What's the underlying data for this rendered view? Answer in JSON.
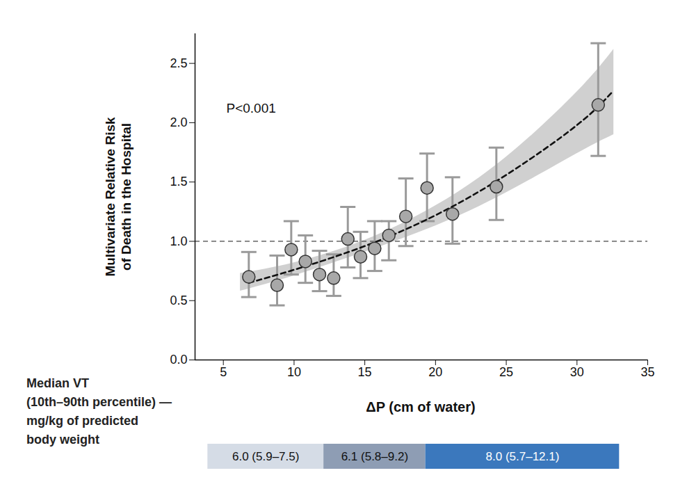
{
  "chart_data": {
    "type": "scatter",
    "annotation": "P<0.001",
    "xlabel": "ΔP (cm of water)",
    "ylabel": "Multivariate Relative Risk\nof Death in the Hospital",
    "x": [
      6.8,
      8.8,
      9.8,
      10.8,
      11.8,
      12.8,
      13.8,
      14.7,
      15.7,
      16.7,
      17.9,
      19.4,
      21.2,
      24.3,
      31.5
    ],
    "values": [
      0.7,
      0.63,
      0.93,
      0.83,
      0.72,
      0.69,
      1.02,
      0.87,
      0.94,
      1.05,
      1.21,
      1.45,
      1.23,
      1.46,
      2.15
    ],
    "error_lower": [
      0.53,
      0.46,
      0.72,
      0.65,
      0.58,
      0.54,
      0.78,
      0.69,
      0.75,
      0.84,
      0.96,
      1.17,
      0.98,
      1.18,
      1.72
    ],
    "error_upper": [
      0.91,
      0.88,
      1.17,
      1.05,
      0.92,
      0.89,
      1.29,
      1.08,
      1.17,
      1.17,
      1.53,
      1.74,
      1.54,
      1.79,
      2.67
    ],
    "color": "#a8a8a8",
    "marker": "circle",
    "fit": {
      "x": [
        6.8,
        10,
        15,
        20,
        25,
        30,
        32.5
      ],
      "values": [
        0.65,
        0.76,
        0.96,
        1.22,
        1.56,
        1.98,
        2.26
      ],
      "color": "#111111",
      "line_style": "dashed"
    },
    "confidence_band": {
      "x": [
        6.2,
        10,
        15,
        20,
        25,
        30,
        32.6
      ],
      "lower": [
        0.58,
        0.71,
        0.91,
        1.13,
        1.41,
        1.74,
        1.9
      ],
      "upper": [
        0.73,
        0.82,
        1.01,
        1.3,
        1.71,
        2.26,
        2.62
      ],
      "color": "#d0d0d0"
    },
    "reference_line": {
      "value": 1.0,
      "line_style": "dashed",
      "color": "#444444"
    },
    "xlim": [
      3,
      35
    ],
    "xticks": [
      5,
      10,
      15,
      20,
      25,
      30,
      35
    ],
    "ylim": [
      0,
      2.75
    ],
    "yticks": [
      {
        "value": 0,
        "label": "0.0"
      },
      0.5,
      {
        "value": 1,
        "label": "1.0"
      },
      1.5,
      {
        "value": 2,
        "label": "2.0"
      },
      2.5
    ],
    "grid": false,
    "median_vt": {
      "label_lines": [
        "Median VT",
        "(10th–90th percentile) —",
        "mg/kg of predicted",
        "body weight"
      ],
      "segments": [
        {
          "x1": 3.9,
          "x2": 12.1,
          "label": "6.0 (5.9–7.5)",
          "color": "#d5dce6"
        },
        {
          "x1": 12.1,
          "x2": 19.3,
          "label": "6.1 (5.8–9.2)",
          "color": "#8e9db4"
        },
        {
          "x1": 19.3,
          "x2": 33.0,
          "label": "8.0 (5.7–12.1)",
          "color": "#3b78bd"
        }
      ]
    }
  }
}
